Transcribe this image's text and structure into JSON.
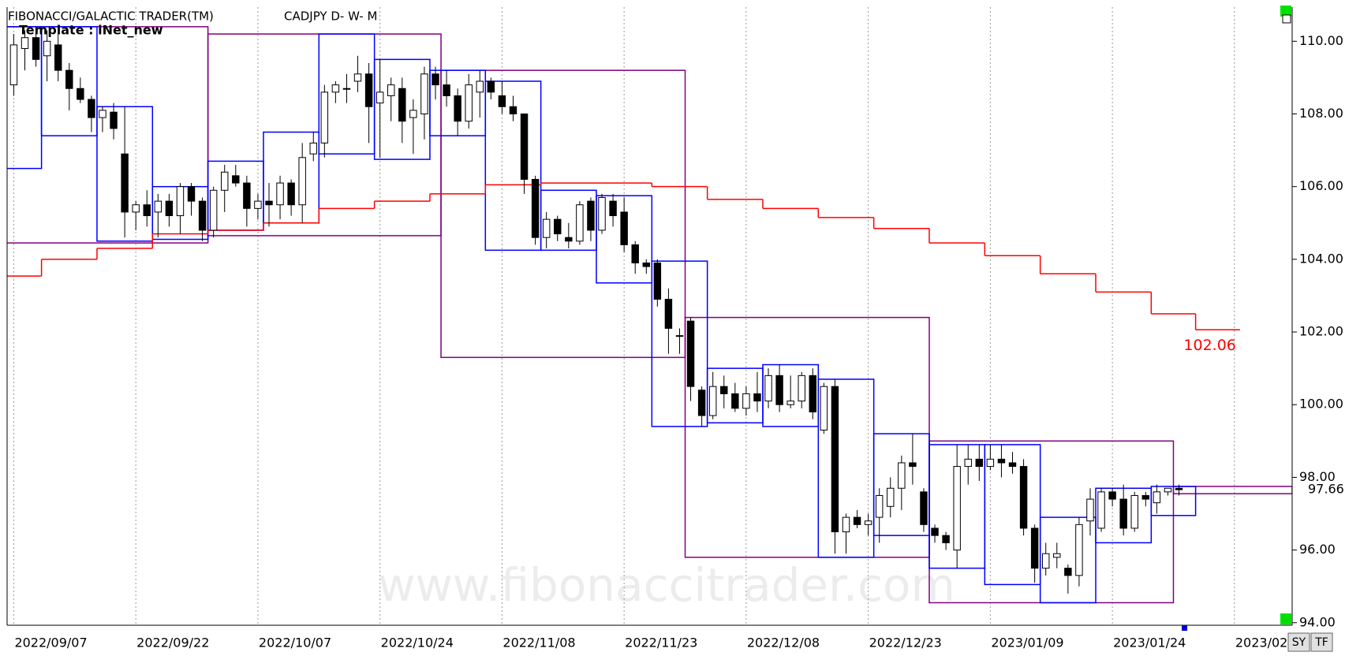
{
  "chart_data": {
    "type": "candlestick",
    "title": "FIBONACCI/GALACTIC TRADER(TM)",
    "symbol": "CADJPY D- W- M",
    "template": "Template : iNet_new",
    "watermark": "www.fibonaccitrader.com",
    "buttons": [
      "SY",
      "TF"
    ],
    "ylim": [
      93.93,
      110.94
    ],
    "xlim": [
      -0.6,
      115.2
    ],
    "yticks": [
      {
        "value": 94,
        "label": "94.00"
      },
      {
        "value": 96,
        "label": "96.00"
      },
      {
        "value": 98,
        "label": "98.00"
      },
      {
        "value": 100,
        "label": "100.00"
      },
      {
        "value": 102,
        "label": "102.00"
      },
      {
        "value": 104,
        "label": "104.00"
      },
      {
        "value": 106,
        "label": "106.00"
      },
      {
        "value": 108,
        "label": "108.00"
      },
      {
        "value": 110,
        "label": "110.00"
      }
    ],
    "xticks": [
      {
        "value": 0,
        "label": "2022/09/07"
      },
      {
        "value": 11,
        "label": "2022/09/22"
      },
      {
        "value": 22,
        "label": "2022/10/07"
      },
      {
        "value": 33,
        "label": "2022/10/24"
      },
      {
        "value": 44,
        "label": "2022/11/08"
      },
      {
        "value": 55,
        "label": "2022/11/23"
      },
      {
        "value": 66,
        "label": "2022/12/08"
      },
      {
        "value": 77,
        "label": "2022/12/23"
      },
      {
        "value": 88,
        "label": "2023/01/09"
      },
      {
        "value": 99,
        "label": "2023/01/24"
      },
      {
        "value": 110,
        "label": "2023/02"
      }
    ],
    "grid": true,
    "up_color": "#ffffff",
    "down_color": "#000000",
    "ohlc": [
      [
        108.8,
        110.2,
        108.5,
        109.9
      ],
      [
        109.8,
        110.3,
        109.2,
        110.1
      ],
      [
        110.1,
        110.4,
        109.3,
        109.5
      ],
      [
        109.6,
        110.3,
        108.9,
        110.0
      ],
      [
        109.9,
        110.2,
        108.9,
        109.2
      ],
      [
        109.2,
        109.4,
        108.1,
        108.7
      ],
      [
        108.7,
        109.0,
        108.3,
        108.4
      ],
      [
        108.4,
        108.5,
        107.5,
        107.9
      ],
      [
        107.9,
        108.2,
        107.5,
        108.1
      ],
      [
        108.05,
        108.3,
        107.3,
        107.6
      ],
      [
        106.9,
        108.2,
        104.6,
        105.3
      ],
      [
        105.3,
        105.6,
        104.8,
        105.5
      ],
      [
        105.5,
        105.9,
        104.9,
        105.2
      ],
      [
        105.3,
        105.8,
        104.6,
        105.6
      ],
      [
        105.6,
        105.8,
        104.9,
        105.2
      ],
      [
        105.2,
        106.1,
        104.7,
        106.0
      ],
      [
        106.0,
        106.1,
        105.2,
        105.6
      ],
      [
        105.6,
        105.7,
        104.5,
        104.8
      ],
      [
        104.8,
        106.0,
        104.6,
        105.9
      ],
      [
        105.9,
        106.6,
        105.3,
        106.4
      ],
      [
        106.3,
        106.6,
        106.0,
        106.1
      ],
      [
        106.1,
        106.3,
        104.9,
        105.4
      ],
      [
        105.4,
        105.8,
        105.1,
        105.6
      ],
      [
        105.6,
        106.1,
        104.9,
        105.5
      ],
      [
        105.5,
        106.3,
        105.1,
        106.1
      ],
      [
        106.1,
        106.2,
        105.2,
        105.5
      ],
      [
        105.5,
        107.2,
        105.0,
        106.8
      ],
      [
        106.9,
        107.5,
        106.7,
        107.2
      ],
      [
        107.2,
        108.8,
        106.8,
        108.6
      ],
      [
        108.6,
        108.9,
        108.3,
        108.8
      ],
      [
        108.7,
        109.1,
        108.3,
        108.7
      ],
      [
        108.9,
        109.6,
        108.6,
        109.1
      ],
      [
        109.1,
        109.4,
        107.2,
        108.2
      ],
      [
        108.3,
        109.5,
        106.8,
        108.6
      ],
      [
        108.5,
        109.0,
        107.8,
        108.8
      ],
      [
        108.7,
        109.0,
        107.2,
        107.8
      ],
      [
        107.9,
        108.4,
        106.9,
        108.1
      ],
      [
        108.0,
        109.3,
        107.3,
        109.1
      ],
      [
        109.1,
        109.3,
        108.4,
        108.8
      ],
      [
        108.8,
        109.2,
        108.2,
        108.5
      ],
      [
        108.5,
        108.7,
        107.4,
        107.8
      ],
      [
        107.8,
        109.1,
        107.6,
        108.8
      ],
      [
        108.6,
        109.2,
        107.9,
        108.9
      ],
      [
        108.9,
        109.0,
        108.4,
        108.6
      ],
      [
        108.5,
        108.9,
        108.0,
        108.2
      ],
      [
        108.2,
        108.5,
        107.8,
        108.0
      ],
      [
        108.0,
        108.0,
        105.8,
        106.2
      ],
      [
        106.2,
        106.3,
        104.4,
        104.6
      ],
      [
        104.6,
        105.3,
        104.3,
        105.1
      ],
      [
        105.1,
        105.2,
        104.5,
        104.7
      ],
      [
        104.6,
        105.0,
        104.3,
        104.5
      ],
      [
        104.5,
        105.6,
        104.4,
        105.5
      ],
      [
        105.6,
        105.7,
        104.5,
        104.8
      ],
      [
        104.8,
        105.8,
        104.7,
        105.7
      ],
      [
        105.6,
        105.8,
        104.9,
        105.2
      ],
      [
        105.3,
        105.7,
        104.2,
        104.4
      ],
      [
        104.4,
        104.5,
        103.6,
        103.9
      ],
      [
        103.9,
        104.0,
        103.6,
        103.8
      ],
      [
        103.9,
        104.0,
        102.7,
        102.9
      ],
      [
        102.9,
        103.2,
        101.4,
        102.1
      ],
      [
        101.9,
        102.1,
        101.4,
        101.9
      ],
      [
        102.3,
        102.4,
        100.1,
        100.5
      ],
      [
        100.4,
        100.5,
        99.4,
        99.7
      ],
      [
        99.7,
        100.9,
        99.6,
        100.5
      ],
      [
        100.5,
        100.8,
        99.9,
        100.3
      ],
      [
        100.3,
        100.6,
        99.8,
        99.9
      ],
      [
        99.9,
        100.5,
        99.7,
        100.3
      ],
      [
        100.3,
        100.9,
        99.8,
        100.1
      ],
      [
        100.1,
        101.0,
        99.9,
        100.8
      ],
      [
        100.8,
        101.1,
        99.8,
        100.0
      ],
      [
        100.0,
        100.8,
        99.9,
        100.1
      ],
      [
        100.1,
        100.9,
        99.9,
        100.8
      ],
      [
        100.8,
        101.0,
        99.6,
        99.8
      ],
      [
        99.3,
        100.6,
        99.2,
        100.5
      ],
      [
        100.5,
        100.7,
        95.9,
        96.5
      ],
      [
        96.5,
        97.0,
        95.9,
        96.9
      ],
      [
        96.9,
        97.1,
        96.6,
        96.7
      ],
      [
        96.7,
        97.0,
        96.4,
        96.8
      ],
      [
        96.9,
        97.7,
        96.2,
        97.5
      ],
      [
        97.2,
        98.0,
        96.9,
        97.7
      ],
      [
        97.7,
        98.6,
        97.1,
        98.4
      ],
      [
        98.4,
        99.2,
        97.8,
        98.3
      ],
      [
        97.6,
        97.7,
        96.5,
        96.7
      ],
      [
        96.6,
        96.7,
        96.2,
        96.4
      ],
      [
        96.4,
        96.5,
        96.0,
        96.2
      ],
      [
        96.0,
        98.9,
        95.5,
        98.3
      ],
      [
        98.3,
        98.9,
        97.8,
        98.5
      ],
      [
        98.5,
        98.9,
        97.9,
        98.3
      ],
      [
        98.3,
        98.9,
        98.2,
        98.5
      ],
      [
        98.5,
        98.9,
        98.0,
        98.4
      ],
      [
        98.4,
        98.7,
        98.1,
        98.3
      ],
      [
        98.3,
        98.5,
        96.4,
        96.6
      ],
      [
        96.6,
        96.7,
        95.1,
        95.5
      ],
      [
        95.5,
        96.2,
        95.3,
        95.9
      ],
      [
        95.8,
        96.2,
        95.5,
        95.9
      ],
      [
        95.5,
        95.6,
        94.8,
        95.3
      ],
      [
        95.3,
        96.9,
        95.0,
        96.7
      ],
      [
        96.8,
        97.7,
        96.4,
        97.4
      ],
      [
        96.6,
        97.7,
        96.5,
        97.6
      ],
      [
        97.6,
        97.7,
        97.2,
        97.4
      ],
      [
        97.4,
        97.8,
        96.4,
        96.6
      ],
      [
        96.6,
        97.6,
        96.5,
        97.5
      ],
      [
        97.5,
        97.6,
        97.2,
        97.4
      ],
      [
        97.3,
        97.8,
        97.0,
        97.6
      ],
      [
        97.6,
        97.7,
        97.5,
        97.7
      ],
      [
        97.7,
        97.8,
        97.5,
        97.66
      ]
    ],
    "weekly_color": "#0000ff",
    "weekly_boxes": [
      {
        "from": -2,
        "to": 2,
        "high": 110.4,
        "low": 106.5
      },
      {
        "from": 3,
        "to": 7,
        "high": 110.4,
        "low": 107.4
      },
      {
        "from": 8,
        "to": 12,
        "high": 108.2,
        "low": 104.5
      },
      {
        "from": 13,
        "to": 17,
        "high": 106.0,
        "low": 104.55
      },
      {
        "from": 18,
        "to": 22,
        "high": 106.7,
        "low": 104.8
      },
      {
        "from": 23,
        "to": 27,
        "high": 107.5,
        "low": 105.0
      },
      {
        "from": 28,
        "to": 32,
        "high": 110.2,
        "low": 106.9
      },
      {
        "from": 33,
        "to": 37,
        "high": 109.5,
        "low": 106.75
      },
      {
        "from": 38,
        "to": 42,
        "high": 109.2,
        "low": 107.4
      },
      {
        "from": 43,
        "to": 47,
        "high": 108.9,
        "low": 104.25
      },
      {
        "from": 48,
        "to": 52,
        "high": 105.9,
        "low": 104.25
      },
      {
        "from": 53,
        "to": 57,
        "high": 105.75,
        "low": 103.35
      },
      {
        "from": 58,
        "to": 62,
        "high": 103.95,
        "low": 99.4
      },
      {
        "from": 63,
        "to": 67,
        "high": 101.0,
        "low": 99.5
      },
      {
        "from": 68,
        "to": 72,
        "high": 101.1,
        "low": 99.4
      },
      {
        "from": 73,
        "to": 77,
        "high": 100.7,
        "low": 95.8
      },
      {
        "from": 78,
        "to": 82,
        "high": 99.2,
        "low": 96.4
      },
      {
        "from": 83,
        "to": 87,
        "high": 98.9,
        "low": 95.5
      },
      {
        "from": 88,
        "to": 92,
        "high": 98.9,
        "low": 95.05
      },
      {
        "from": 93,
        "to": 97,
        "high": 96.9,
        "low": 94.55
      },
      {
        "from": 98,
        "to": 102,
        "high": 97.7,
        "low": 96.2
      },
      {
        "from": 103,
        "to": 106,
        "high": 97.75,
        "low": 96.95
      }
    ],
    "monthly_color": "#800080",
    "monthly_boxes": [
      {
        "from": -4,
        "to": 17,
        "high": 110.4,
        "low": 104.45
      },
      {
        "from": 18,
        "to": 38,
        "high": 110.2,
        "low": 104.65
      },
      {
        "from": 39,
        "to": 60,
        "high": 109.2,
        "low": 101.3
      },
      {
        "from": 61,
        "to": 82,
        "high": 102.4,
        "low": 95.8
      },
      {
        "from": 83,
        "to": 104,
        "high": 99.0,
        "low": 94.55
      },
      {
        "from": 105,
        "high": 97.75,
        "low": 97.55
      }
    ],
    "ma_color": "#ff0000",
    "ma_steps": [
      {
        "from": -2,
        "to": 2,
        "value": 103.54
      },
      {
        "from": 3,
        "to": 7,
        "value": 104.0
      },
      {
        "from": 8,
        "to": 12,
        "value": 104.3
      },
      {
        "from": 13,
        "to": 17,
        "value": 104.7
      },
      {
        "from": 18,
        "to": 22,
        "value": 104.8
      },
      {
        "from": 23,
        "to": 27,
        "value": 105.0
      },
      {
        "from": 28,
        "to": 32,
        "value": 105.4
      },
      {
        "from": 33,
        "to": 37,
        "value": 105.6
      },
      {
        "from": 38,
        "to": 42,
        "value": 105.8
      },
      {
        "from": 43,
        "to": 47,
        "value": 106.05
      },
      {
        "from": 48,
        "to": 52,
        "value": 106.1
      },
      {
        "from": 53,
        "to": 57,
        "value": 106.1
      },
      {
        "from": 58,
        "to": 62,
        "value": 106.0
      },
      {
        "from": 63,
        "to": 67,
        "value": 105.65
      },
      {
        "from": 68,
        "to": 72,
        "value": 105.4
      },
      {
        "from": 73,
        "to": 77,
        "value": 105.15
      },
      {
        "from": 78,
        "to": 82,
        "value": 104.85
      },
      {
        "from": 83,
        "to": 87,
        "value": 104.45
      },
      {
        "from": 88,
        "to": 92,
        "value": 104.1
      },
      {
        "from": 93,
        "to": 97,
        "value": 103.6
      },
      {
        "from": 98,
        "to": 102,
        "value": 103.1
      },
      {
        "from": 103,
        "to": 106,
        "value": 102.5
      },
      {
        "from": 107,
        "to": 110,
        "value": 102.06
      }
    ]
  }
}
